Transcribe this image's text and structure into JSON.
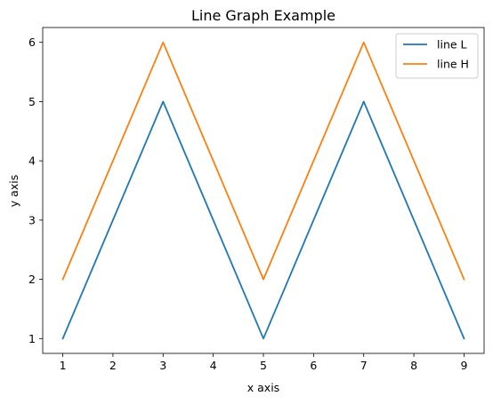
{
  "chart_data": {
    "type": "line",
    "title": "Line Graph Example",
    "xlabel": "x axis",
    "ylabel": "y axis",
    "x": [
      1,
      2,
      3,
      4,
      5,
      6,
      7,
      8,
      9
    ],
    "xlim": [
      0.6,
      9.4
    ],
    "ylim": [
      0.75,
      6.25
    ],
    "xticks": [
      "1",
      "2",
      "3",
      "4",
      "5",
      "6",
      "7",
      "8",
      "9"
    ],
    "yticks": [
      "1",
      "2",
      "3",
      "4",
      "5",
      "6"
    ],
    "grid": false,
    "legend_position": "top-right",
    "series": [
      {
        "name": "line L",
        "color": "#1f77b4",
        "values": [
          1,
          3,
          5,
          3,
          1,
          3,
          5,
          3,
          1
        ]
      },
      {
        "name": "line H",
        "color": "#ff7f0e",
        "values": [
          2,
          4,
          6,
          4,
          2,
          4,
          6,
          4,
          2
        ]
      }
    ]
  }
}
